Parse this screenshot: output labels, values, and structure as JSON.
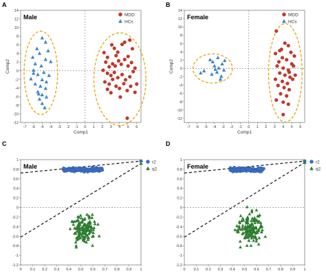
{
  "colors": {
    "mdd": "#c0392b",
    "hcs": "#3d85c6",
    "r2": "#3c6fc4",
    "q2": "#2e7d32",
    "ellipse": "#e6a817",
    "dashed": "#888888"
  },
  "chart_data": [
    {
      "panel": "A",
      "type": "scatter",
      "group_label": "Male",
      "xlabel": "Comp1",
      "ylabel": "Comp2",
      "xlim": [
        -7.5,
        6.5
      ],
      "ylim": [
        -12,
        14
      ],
      "xticks": [
        "-7",
        "-6",
        "-5",
        "-4",
        "-3",
        "-2",
        "-1",
        "0",
        "1",
        "2",
        "3",
        "4",
        "5",
        "6"
      ],
      "yticks": [
        "-12",
        "-10",
        "-8",
        "-6",
        "-4",
        "-2",
        "0",
        "2",
        "4",
        "6",
        "8",
        "10",
        "12",
        "14"
      ],
      "legend_position": "top-right",
      "series": [
        {
          "name": "MDD",
          "marker": "circle",
          "points": [
            [
              2.2,
              4.2
            ],
            [
              2.6,
              3.1
            ],
            [
              3.1,
              6.0
            ],
            [
              3.4,
              5.2
            ],
            [
              3.8,
              4.3
            ],
            [
              4.3,
              6.1
            ],
            [
              4.6,
              6.6
            ],
            [
              5.2,
              7.1
            ],
            [
              5.5,
              5.1
            ],
            [
              2.4,
              2.0
            ],
            [
              2.8,
              0.9
            ],
            [
              3.2,
              1.6
            ],
            [
              3.5,
              1.1
            ],
            [
              3.9,
              2.3
            ],
            [
              4.2,
              1.5
            ],
            [
              4.6,
              2.6
            ],
            [
              5.0,
              1.1
            ],
            [
              5.4,
              1.9
            ],
            [
              5.8,
              0.6
            ],
            [
              2.1,
              0.1
            ],
            [
              2.6,
              -0.6
            ],
            [
              3.0,
              -1.1
            ],
            [
              3.4,
              -0.4
            ],
            [
              3.8,
              -1.6
            ],
            [
              4.3,
              -0.9
            ],
            [
              4.7,
              -2.1
            ],
            [
              5.2,
              -1.4
            ],
            [
              5.6,
              -0.2
            ],
            [
              2.3,
              -2.6
            ],
            [
              2.8,
              -3.1
            ],
            [
              3.2,
              -2.0
            ],
            [
              3.6,
              -3.6
            ],
            [
              4.0,
              -4.1
            ],
            [
              4.5,
              -3.0
            ],
            [
              4.9,
              -4.6
            ],
            [
              5.3,
              -3.6
            ],
            [
              3.0,
              -5.1
            ],
            [
              4.1,
              -6.1
            ],
            [
              6.0,
              -3.1
            ],
            [
              5.8,
              -5.0
            ],
            [
              4.9,
              -11.0
            ],
            [
              2.6,
              -4.3
            ],
            [
              3.6,
              3.5
            ],
            [
              5.0,
              3.3
            ]
          ]
        },
        {
          "name": "HCs",
          "marker": "triangle",
          "points": [
            [
              -5.0,
              7.6
            ],
            [
              -4.6,
              6.6
            ],
            [
              -5.6,
              5.1
            ],
            [
              -4.3,
              4.6
            ],
            [
              -5.3,
              4.0
            ],
            [
              -6.1,
              3.1
            ],
            [
              -4.6,
              2.6
            ],
            [
              -5.8,
              1.6
            ],
            [
              -5.1,
              1.1
            ],
            [
              -4.0,
              2.1
            ],
            [
              -6.0,
              0.1
            ],
            [
              -5.5,
              -0.9
            ],
            [
              -4.8,
              -0.4
            ],
            [
              -6.3,
              -1.9
            ],
            [
              -5.0,
              -2.1
            ],
            [
              -4.5,
              -2.6
            ],
            [
              -5.8,
              -3.1
            ],
            [
              -5.2,
              -3.6
            ],
            [
              -4.6,
              -4.1
            ],
            [
              -5.5,
              -4.9
            ],
            [
              -5.0,
              -5.6
            ],
            [
              -4.5,
              -6.1
            ],
            [
              -5.3,
              -6.6
            ],
            [
              -5.0,
              -7.6
            ],
            [
              -4.7,
              -8.6
            ],
            [
              -5.4,
              -5.4
            ],
            [
              -4.2,
              -1.1
            ],
            [
              -6.0,
              -0.6
            ]
          ]
        }
      ]
    },
    {
      "panel": "B",
      "type": "scatter",
      "group_label": "Female",
      "xlabel": "Comp1",
      "ylabel": "Comp2",
      "xlim": [
        -7.5,
        6.5
      ],
      "ylim": [
        -13,
        14
      ],
      "xticks": [
        "-7",
        "-6",
        "-5",
        "-4",
        "-3",
        "-2",
        "-1",
        "0",
        "1",
        "2",
        "3",
        "4",
        "5",
        "6"
      ],
      "yticks": [
        "-12",
        "-10",
        "-8",
        "-6",
        "-4",
        "-2",
        "0",
        "2",
        "4",
        "6",
        "8",
        "10",
        "12",
        "14"
      ],
      "legend_position": "top-right",
      "series": [
        {
          "name": "MDD",
          "marker": "circle",
          "points": [
            [
              3.2,
              9.0
            ],
            [
              3.8,
              4.6
            ],
            [
              4.6,
              5.5
            ],
            [
              4.2,
              6.1
            ],
            [
              4.9,
              3.9
            ],
            [
              3.9,
              2.6
            ],
            [
              3.5,
              1.6
            ],
            [
              4.4,
              2.1
            ],
            [
              5.0,
              1.1
            ],
            [
              3.3,
              0.6
            ],
            [
              4.0,
              0.1
            ],
            [
              4.6,
              -0.4
            ],
            [
              5.2,
              0.6
            ],
            [
              3.6,
              -1.1
            ],
            [
              4.2,
              -1.6
            ],
            [
              4.8,
              -2.1
            ],
            [
              3.1,
              -2.6
            ],
            [
              3.9,
              -3.1
            ],
            [
              4.5,
              -3.6
            ],
            [
              5.1,
              -2.6
            ],
            [
              3.4,
              -4.1
            ],
            [
              4.1,
              -4.6
            ],
            [
              4.7,
              -5.1
            ],
            [
              3.7,
              -6.1
            ],
            [
              4.4,
              -6.6
            ],
            [
              3.2,
              -7.6
            ],
            [
              4.0,
              -8.1
            ],
            [
              4.6,
              -8.6
            ],
            [
              4.0,
              -11.1
            ],
            [
              5.4,
              -1.6
            ],
            [
              3.1,
              3.6
            ],
            [
              5.3,
              3.0
            ],
            [
              3.6,
              4.3
            ],
            [
              4.7,
              -0.9
            ]
          ]
        },
        {
          "name": "HCs",
          "marker": "triangle",
          "points": [
            [
              -3.6,
              2.6
            ],
            [
              -4.2,
              1.6
            ],
            [
              -3.1,
              1.1
            ],
            [
              -4.0,
              0.6
            ],
            [
              -3.5,
              0.1
            ],
            [
              -2.9,
              -0.4
            ],
            [
              -3.7,
              -0.9
            ],
            [
              -4.3,
              -1.4
            ],
            [
              -3.2,
              -1.9
            ],
            [
              -4.5,
              2.1
            ],
            [
              -2.8,
              1.9
            ],
            [
              -3.9,
              -0.2
            ],
            [
              -5.6,
              -1.1
            ],
            [
              -5.2,
              -0.6
            ],
            [
              -3.3,
              -2.6
            ]
          ]
        }
      ]
    },
    {
      "panel": "C",
      "type": "scatter",
      "group_label": "Male",
      "xlim": [
        0,
        1
      ],
      "ylim": [
        -1.2,
        1.0
      ],
      "xticks": [
        "0",
        "0.1",
        "0.2",
        "0.3",
        "0.4",
        "0.5",
        "0.6",
        "0.7",
        "0.8",
        "0.9",
        "1"
      ],
      "yticks": [
        "1",
        "0.8",
        "0.6",
        "0.4",
        "0.2",
        "0",
        "-0.2",
        "-0.4",
        "-0.6",
        "-0.8",
        "-1",
        "-1.2"
      ],
      "legend_position": "top-right",
      "r2_intercept": 0.72,
      "q2_intercept": -0.62,
      "r2_endpoint": [
        1.0,
        0.97
      ],
      "q2_endpoint": [
        1.0,
        0.92
      ],
      "series": [
        {
          "name": "r2",
          "marker": "circle",
          "x_range": [
            0.35,
            0.68
          ],
          "y_center": 0.79,
          "y_spread": 0.06,
          "count": 120
        },
        {
          "name": "q2",
          "marker": "triangle",
          "x_range": [
            0.38,
            0.67
          ],
          "y_center": -0.45,
          "y_spread": 0.3,
          "count": 150
        }
      ]
    },
    {
      "panel": "D",
      "type": "scatter",
      "group_label": "Female",
      "xlim": [
        0,
        1
      ],
      "ylim": [
        -1.2,
        1.0
      ],
      "xticks": [
        "0",
        "0.1",
        "0.2",
        "0.3",
        "0.4",
        "0.5",
        "0.6",
        "0.7",
        "0.8",
        "0.9",
        "1"
      ],
      "yticks": [
        "1",
        "0.8",
        "0.6",
        "0.4",
        "0.2",
        "0",
        "-0.2",
        "-0.4",
        "-0.6",
        "-0.8",
        "-1",
        "-1.2"
      ],
      "legend_position": "top-right",
      "r2_intercept": 0.72,
      "q2_intercept": -0.62,
      "r2_endpoint": [
        1.0,
        0.97
      ],
      "q2_endpoint": [
        1.0,
        0.94
      ],
      "series": [
        {
          "name": "r2",
          "marker": "circle",
          "x_range": [
            0.38,
            0.66
          ],
          "y_center": 0.79,
          "y_spread": 0.06,
          "count": 120
        },
        {
          "name": "q2",
          "marker": "triangle",
          "x_range": [
            0.4,
            0.7
          ],
          "y_center": -0.45,
          "y_spread": 0.3,
          "count": 150
        }
      ]
    }
  ]
}
